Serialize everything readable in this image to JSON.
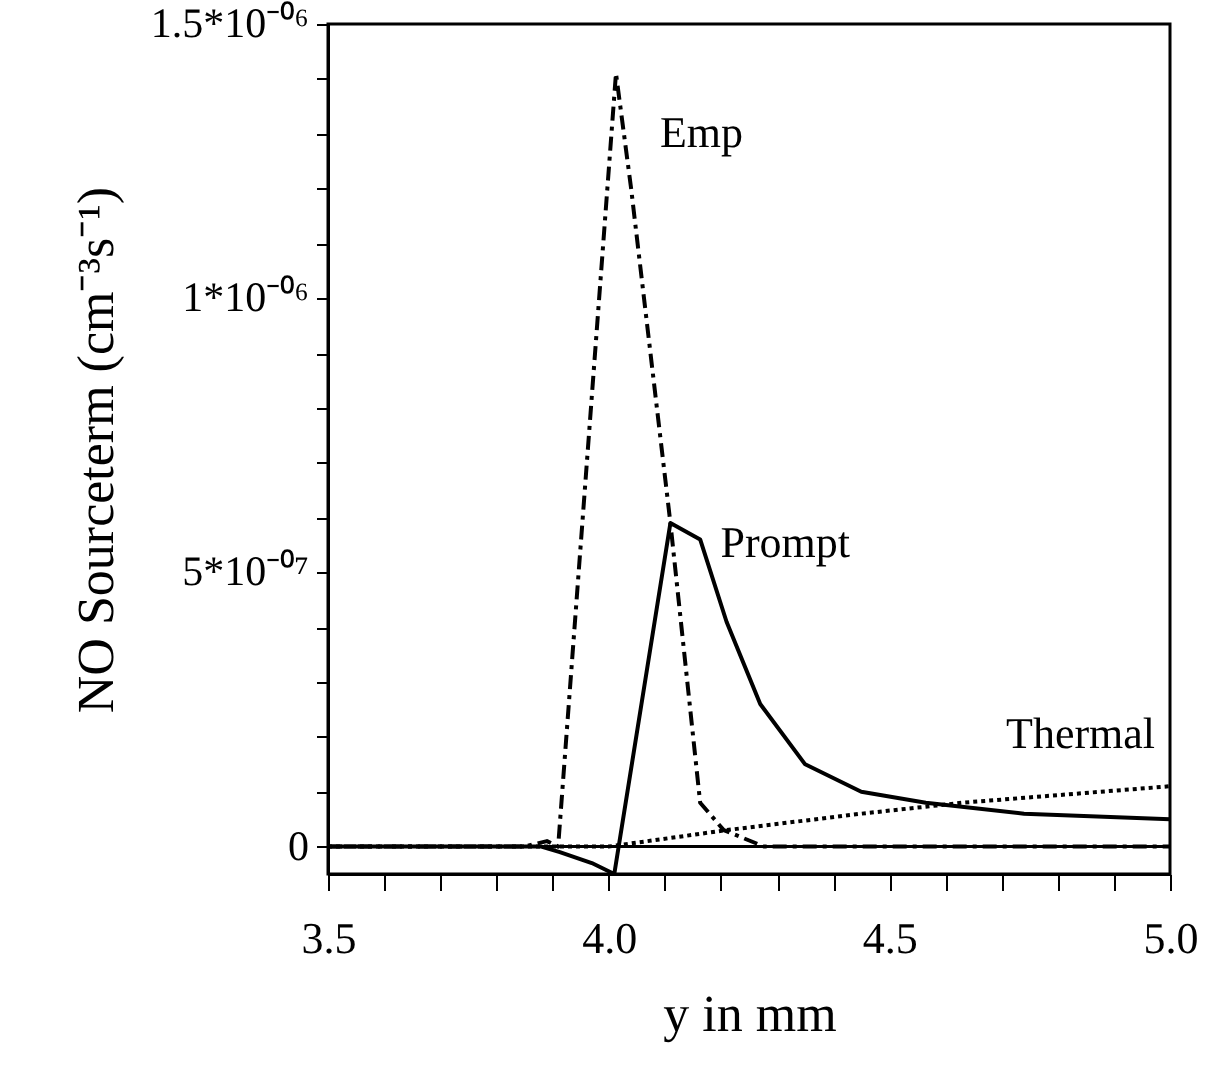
{
  "chart_data": {
    "type": "line",
    "xlabel": "y in mm",
    "ylabel": "NO Sourceterm (cm⁻³s⁻¹)",
    "xlim": [
      3.5,
      5.0
    ],
    "ylim": [
      -5e-08,
      1.5e-06
    ],
    "xticks": [
      3.5,
      {
        "value": 3.6,
        "label": null
      },
      {
        "value": 3.7,
        "label": null
      },
      {
        "value": 3.8,
        "label": null
      },
      {
        "value": 3.9,
        "label": null
      },
      {
        "value": 4.0,
        "label": "4.0"
      },
      {
        "value": 4.1,
        "label": null
      },
      {
        "value": 4.2,
        "label": null
      },
      {
        "value": 4.3,
        "label": null
      },
      {
        "value": 4.4,
        "label": null
      },
      4.5,
      {
        "value": 4.6,
        "label": null
      },
      {
        "value": 4.7,
        "label": null
      },
      {
        "value": 4.8,
        "label": null
      },
      {
        "value": 4.9,
        "label": null
      },
      {
        "value": 5.0,
        "label": "5.0"
      }
    ],
    "yticks": [
      {
        "value": 0,
        "label": "0"
      },
      {
        "value": 1e-07,
        "label": null
      },
      {
        "value": 2e-07,
        "label": null
      },
      {
        "value": 3e-07,
        "label": null
      },
      {
        "value": 4e-07,
        "label": null
      },
      {
        "value": 5e-07,
        "label": "5*10⁻⁰⁷"
      },
      {
        "value": 6e-07,
        "label": null
      },
      {
        "value": 7e-07,
        "label": null
      },
      {
        "value": 8e-07,
        "label": null
      },
      {
        "value": 9e-07,
        "label": null
      },
      {
        "value": 1e-06,
        "label": "1*10⁻⁰⁶"
      },
      {
        "value": 1.1e-06,
        "label": null
      },
      {
        "value": 1.2e-06,
        "label": null
      },
      {
        "value": 1.3e-06,
        "label": null
      },
      {
        "value": 1.4e-06,
        "label": null
      },
      {
        "value": 1.5e-06,
        "label": "1.5*10⁻⁰⁶"
      }
    ],
    "grid": false,
    "marker": "none",
    "ref_lines": [
      {
        "axis": "y",
        "value": 0,
        "color": "#000000",
        "line_style": "solid"
      }
    ],
    "series": [
      {
        "name": "Emp",
        "color": "#000000",
        "line_style": "dashed",
        "x": [
          3.5,
          3.85,
          3.89,
          3.91,
          4.013,
          4.04,
          4.11,
          4.163,
          4.205,
          4.277,
          5.0
        ],
        "values": [
          0,
          0,
          1e-08,
          0,
          1.41e-06,
          1.2e-06,
          5.9e-07,
          8e-08,
          3e-08,
          0,
          0
        ]
      },
      {
        "name": "Prompt",
        "color": "#000000",
        "line_style": "solid",
        "x": [
          3.5,
          3.88,
          3.913,
          3.97,
          4.01,
          4.11,
          4.163,
          4.21,
          4.27,
          4.35,
          4.45,
          4.565,
          4.74,
          5.0
        ],
        "values": [
          0,
          0,
          -1e-08,
          -3e-08,
          -5e-08,
          5.9e-07,
          5.6e-07,
          4.1e-07,
          2.6e-07,
          1.5e-07,
          1e-07,
          8e-08,
          6e-08,
          5e-08
        ]
      },
      {
        "name": "Thermal",
        "color": "#000000",
        "line_style": "dotted",
        "x": [
          3.5,
          4.0,
          4.21,
          4.45,
          4.63,
          5.0
        ],
        "values": [
          0,
          0,
          3e-08,
          6e-08,
          8e-08,
          1.1e-07
        ]
      }
    ]
  }
}
